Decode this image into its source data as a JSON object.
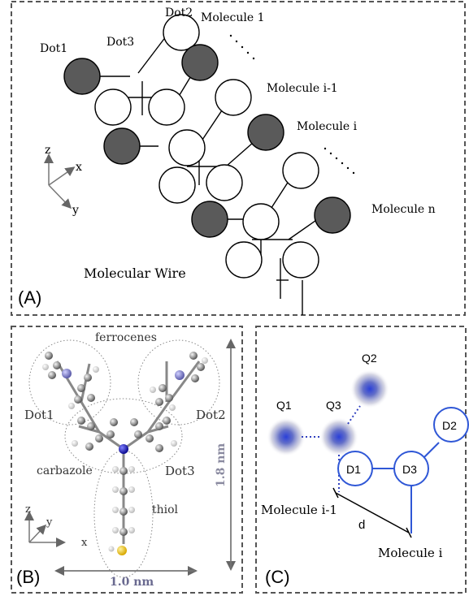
{
  "panel_a": {
    "label": "(A)",
    "title": "Molecular Wire",
    "dot1": "Dot1",
    "dot2": "Dot2",
    "dot3": "Dot3",
    "molecule_1": "Molecule 1",
    "molecule_i_minus_1": "Molecule i-1",
    "molecule_i": "Molecule i",
    "molecule_n": "Molecule n",
    "axis_z": "z",
    "axis_x": "x",
    "axis_y": "y"
  },
  "panel_b": {
    "label": "(B)",
    "ferrocenes": "ferrocenes",
    "dot1": "Dot1",
    "dot2": "Dot2",
    "dot3": "Dot3",
    "carbazole": "carbazole",
    "thiol": "thiol",
    "height": "1.8 nm",
    "width": "1.0 nm",
    "axis_z": "z",
    "axis_y": "y",
    "axis_x": "x"
  },
  "panel_c": {
    "label": "(C)",
    "q1": "Q1",
    "q2": "Q2",
    "q3": "Q3",
    "d1": "D1",
    "d2": "D2",
    "d3": "D3",
    "molecule_i_minus_1": "Molecule i-1",
    "molecule_i": "Molecule i",
    "distance": "d"
  },
  "colors": {
    "frame": "#555555",
    "filled_dot": "#5a5a5a",
    "blue": "#2f57d6",
    "gold": "#e0b400"
  }
}
